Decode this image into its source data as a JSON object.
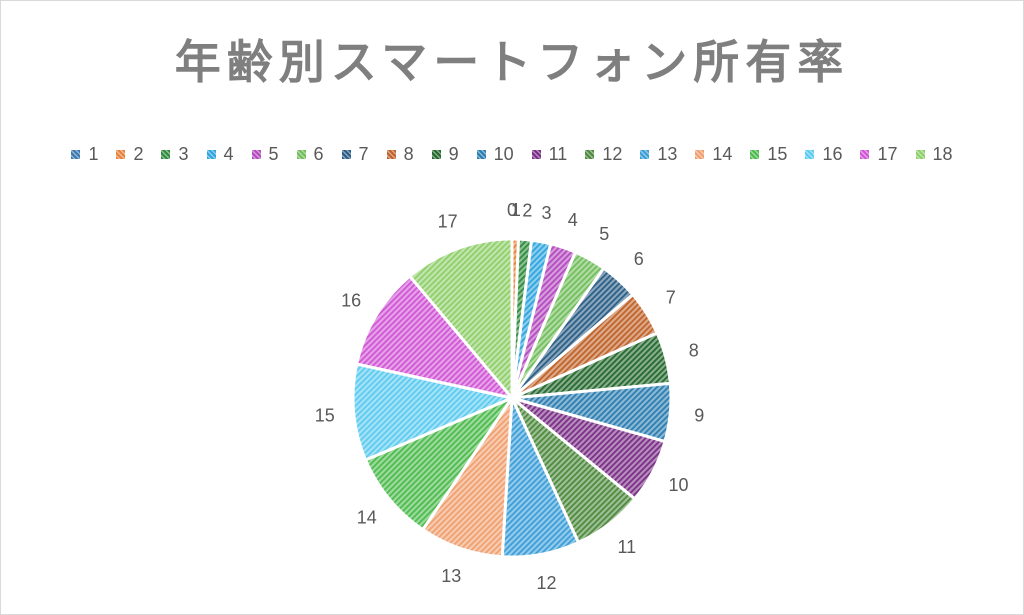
{
  "chart_data": {
    "type": "pie",
    "title": "年齢別スマートフォン所有率",
    "categories": [
      "1",
      "2",
      "3",
      "4",
      "5",
      "6",
      "7",
      "8",
      "9",
      "10",
      "11",
      "12",
      "13",
      "14",
      "15",
      "16",
      "17",
      "18"
    ],
    "values": [
      0,
      1,
      2,
      3,
      4,
      5,
      6,
      7,
      8,
      9,
      10,
      11,
      12,
      13,
      14,
      15,
      16,
      17
    ],
    "data_labels": "values",
    "legend_position": "top",
    "fill_style": "diagonal-hatch",
    "series_colors": [
      "#3B78B0",
      "#E8823A",
      "#2F8C3E",
      "#2FA5DE",
      "#B44BC0",
      "#72BE5C",
      "#2B5E86",
      "#C0632A",
      "#25692F",
      "#2C7DB0",
      "#7A2F86",
      "#4E8A3E",
      "#3C9ED8",
      "#F0A070",
      "#4DBB4D",
      "#5CCBF0",
      "#D156D6",
      "#8FCF6A"
    ]
  }
}
